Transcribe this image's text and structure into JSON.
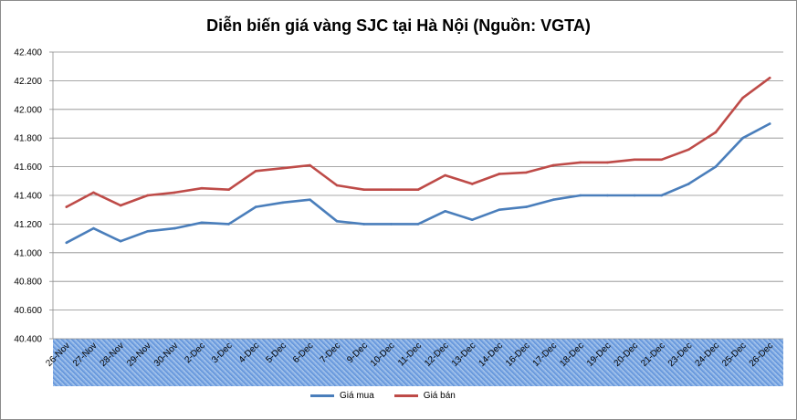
{
  "chart_data": {
    "type": "line",
    "title": "Diễn biến giá vàng SJC tại Hà Nội (Nguồn: VGTA)",
    "xlabel": "",
    "ylabel": "",
    "ylim": [
      40400,
      42400
    ],
    "y_ticks": [
      "42.400",
      "42.200",
      "42.000",
      "41.800",
      "41.600",
      "41.400",
      "41.200",
      "41.000",
      "40.800",
      "40.600",
      "40.400"
    ],
    "y_tick_values": [
      42400,
      42200,
      42000,
      41800,
      41600,
      41400,
      41200,
      41000,
      40800,
      40600,
      40400
    ],
    "grid": true,
    "legend_position": "bottom",
    "categories": [
      "26-Nov",
      "27-Nov",
      "28-Nov",
      "29-Nov",
      "30-Nov",
      "2-Dec",
      "3-Dec",
      "4-Dec",
      "5-Dec",
      "6-Dec",
      "7-Dec",
      "9-Dec",
      "10-Dec",
      "11-Dec",
      "12-Dec",
      "13-Dec",
      "14-Dec",
      "16-Dec",
      "17-Dec",
      "18-Dec",
      "19-Dec",
      "20-Dec",
      "21-Dec",
      "23-Dec",
      "24-Dec",
      "25-Dec",
      "26-Dec"
    ],
    "series": [
      {
        "name": "Giá mua",
        "color": "#4a7ebb",
        "values": [
          41070,
          41170,
          41080,
          41150,
          41170,
          41210,
          41200,
          41320,
          41350,
          41370,
          41220,
          41200,
          41200,
          41200,
          41290,
          41230,
          41300,
          41320,
          41370,
          41400,
          41400,
          41400,
          41400,
          41480,
          41600,
          41800,
          41900
        ]
      },
      {
        "name": "Giá bán",
        "color": "#be4b48",
        "values": [
          41320,
          41420,
          41330,
          41400,
          41420,
          41450,
          41440,
          41570,
          41590,
          41610,
          41470,
          41440,
          41440,
          41440,
          41540,
          41480,
          41550,
          41560,
          41610,
          41630,
          41630,
          41650,
          41650,
          41720,
          41840,
          42080,
          42220
        ]
      }
    ]
  }
}
